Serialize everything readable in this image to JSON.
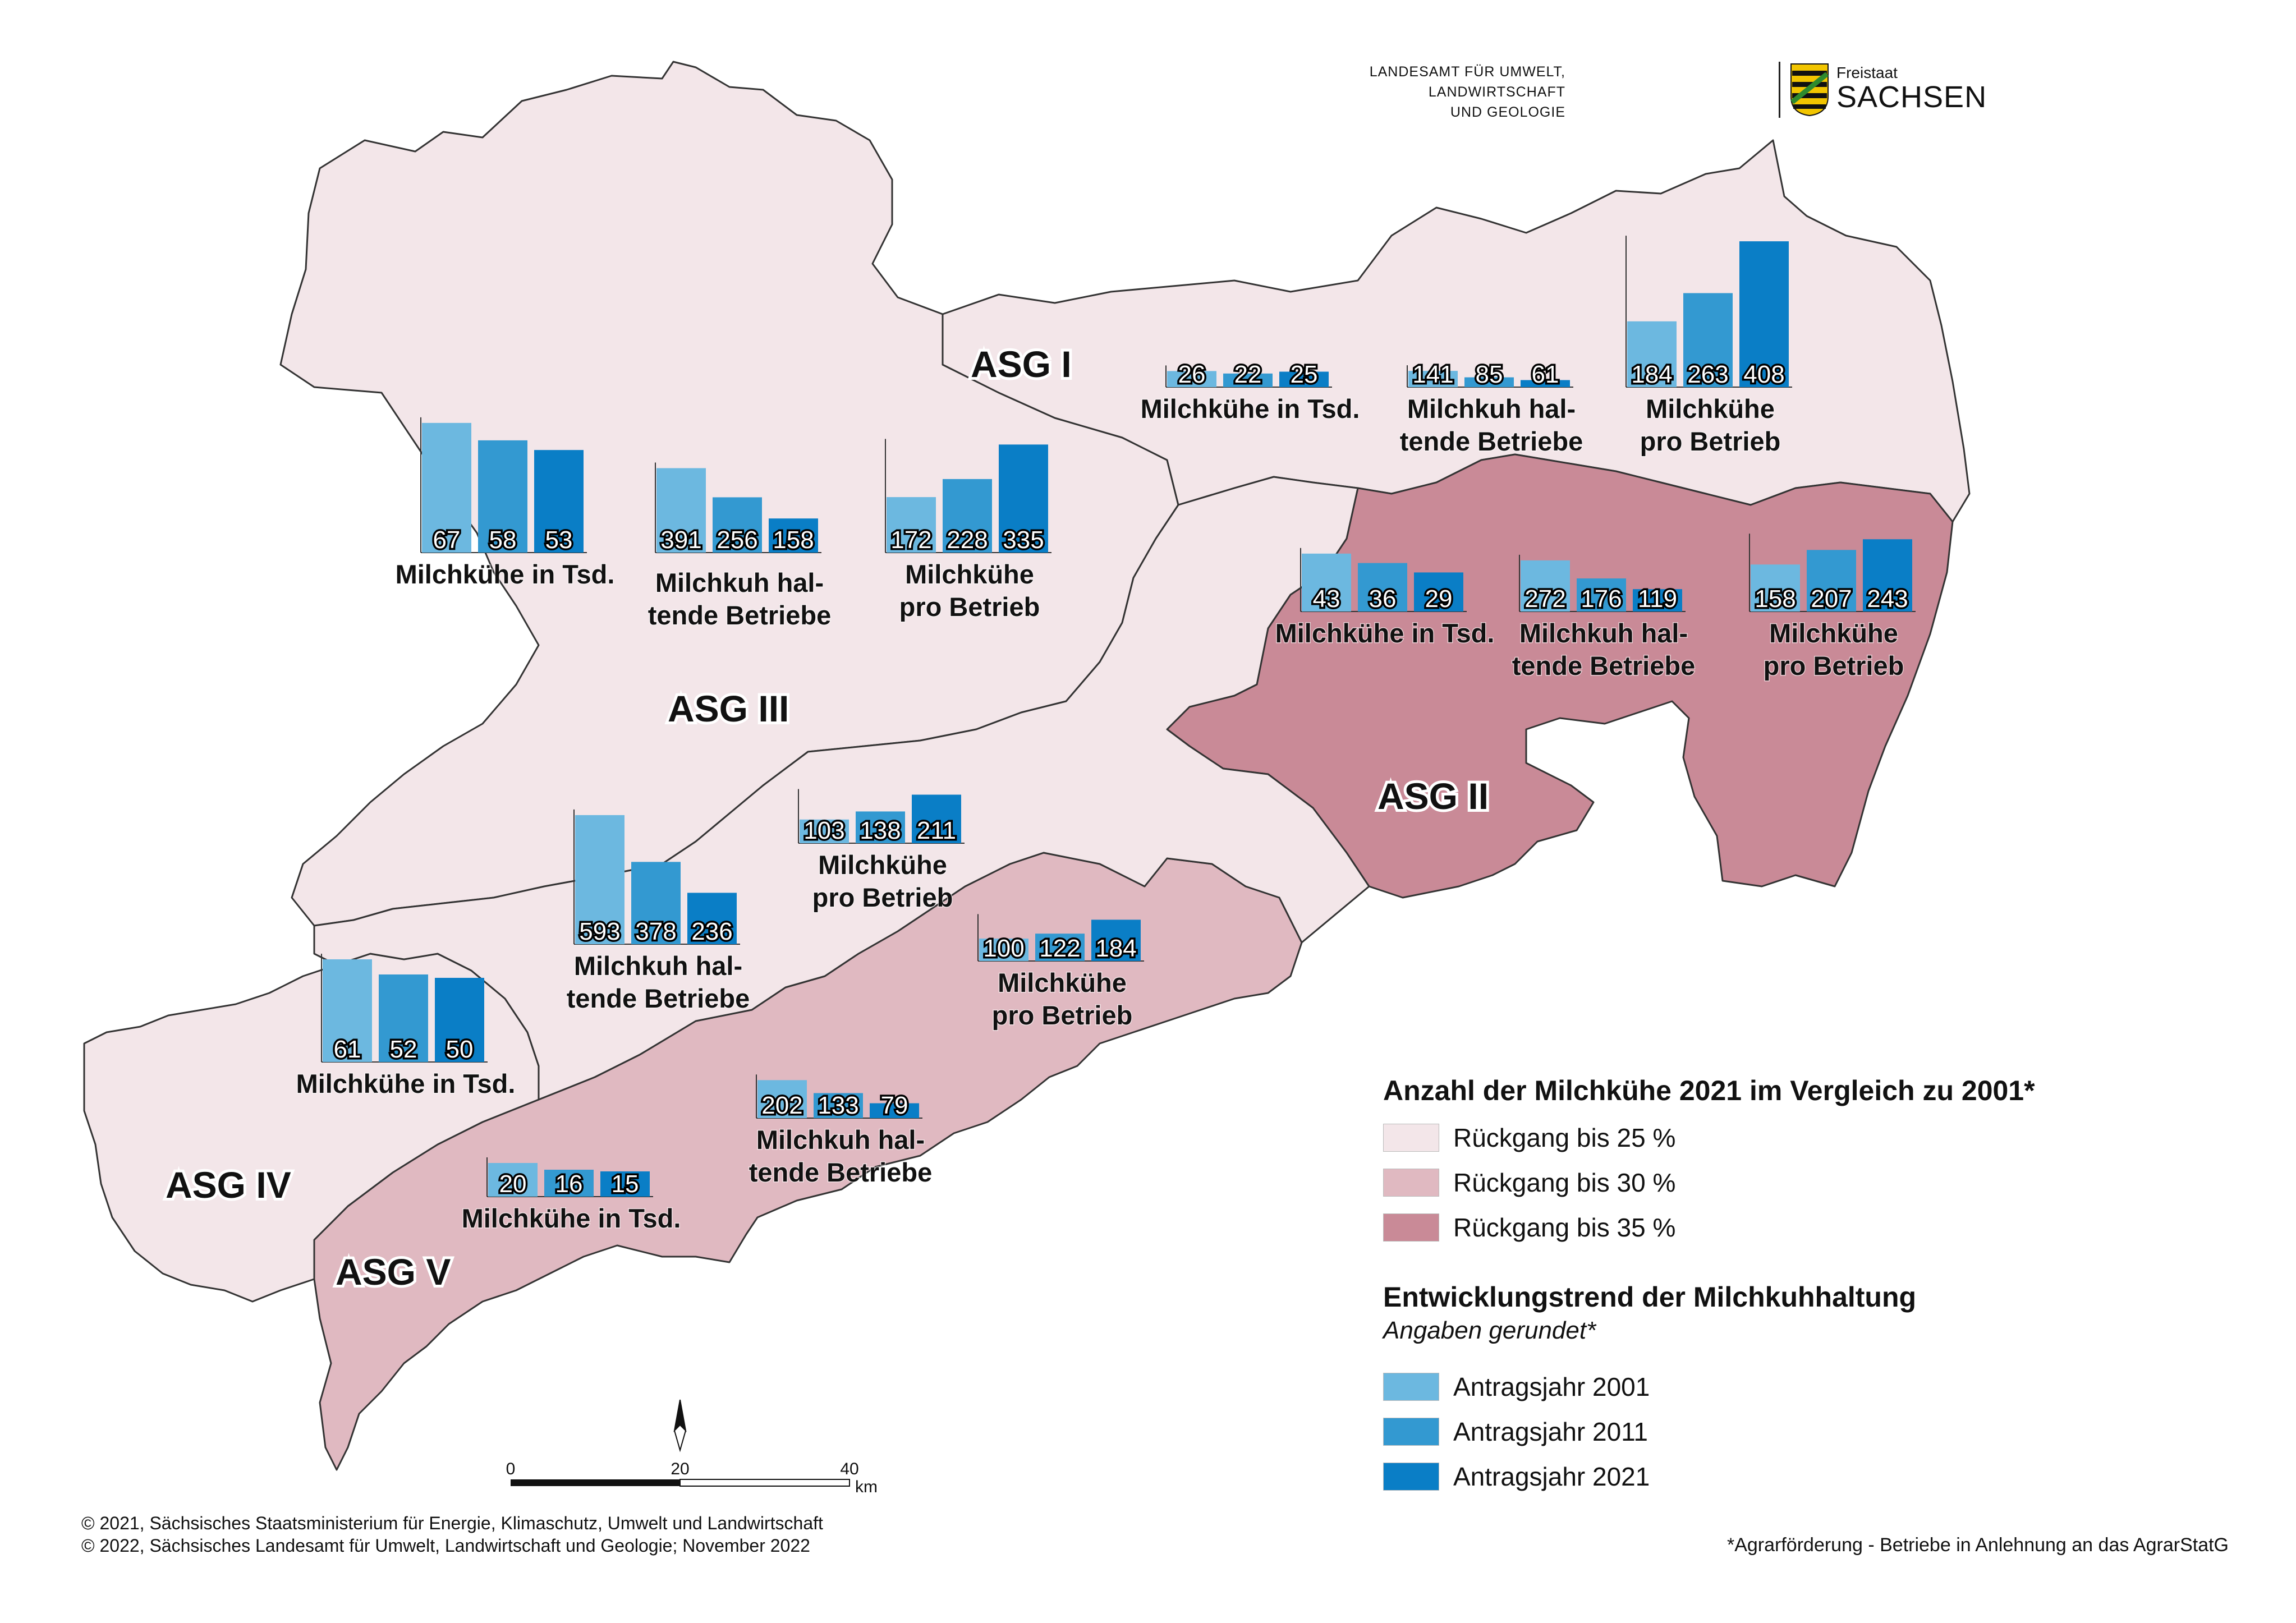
{
  "header": {
    "agency_lines": [
      "LANDESAMT FÜR UMWELT,",
      "LANDWIRTSCHAFT",
      "UND GEOLOGIE"
    ],
    "brand_small": "Freistaat",
    "brand_large": "SACHSEN"
  },
  "regions": [
    {
      "id": "ASG I",
      "label": "ASG I",
      "class": "Rückgang bis 25 %",
      "color": "#f3e6e9"
    },
    {
      "id": "ASG II",
      "label": "ASG II",
      "class": "Rückgang bis 35 %",
      "color": "#c98a97"
    },
    {
      "id": "ASG III",
      "label": "ASG III",
      "class": "Rückgang bis 25 %",
      "color": "#f3e6e9"
    },
    {
      "id": "ASG IV",
      "label": "ASG IV",
      "class": "Rückgang bis 25 %",
      "color": "#f3e6e9"
    },
    {
      "id": "ASG V",
      "label": "ASG V",
      "class": "Rückgang bis 30 %",
      "color": "#e0b9c1"
    }
  ],
  "chart_data": [
    {
      "type": "bar",
      "region": "ASG I",
      "title": "Milchkühe in Tsd.",
      "categories": [
        "Antragsjahr 2001",
        "Antragsjahr 2011",
        "Antragsjahr 2021"
      ],
      "values": [
        26,
        22,
        25
      ]
    },
    {
      "type": "bar",
      "region": "ASG I",
      "title": "Milchkuh hal- tende Betriebe",
      "categories": [
        "Antragsjahr 2001",
        "Antragsjahr 2011",
        "Antragsjahr 2021"
      ],
      "values": [
        141,
        85,
        61
      ]
    },
    {
      "type": "bar",
      "region": "ASG I",
      "title": "Milchkühe pro Betrieb",
      "categories": [
        "Antragsjahr 2001",
        "Antragsjahr 2011",
        "Antragsjahr 2021"
      ],
      "values": [
        184,
        263,
        408
      ]
    },
    {
      "type": "bar",
      "region": "ASG II",
      "title": "Milchkühe in Tsd.",
      "categories": [
        "Antragsjahr 2001",
        "Antragsjahr 2011",
        "Antragsjahr 2021"
      ],
      "values": [
        43,
        36,
        29
      ]
    },
    {
      "type": "bar",
      "region": "ASG II",
      "title": "Milchkuh hal- tende Betriebe",
      "categories": [
        "Antragsjahr 2001",
        "Antragsjahr 2011",
        "Antragsjahr 2021"
      ],
      "values": [
        272,
        176,
        119
      ]
    },
    {
      "type": "bar",
      "region": "ASG II",
      "title": "Milchkühe pro Betrieb",
      "categories": [
        "Antragsjahr 2001",
        "Antragsjahr 2011",
        "Antragsjahr 2021"
      ],
      "values": [
        158,
        207,
        243
      ]
    },
    {
      "type": "bar",
      "region": "ASG III",
      "title": "Milchkühe in Tsd.",
      "categories": [
        "Antragsjahr 2001",
        "Antragsjahr 2011",
        "Antragsjahr 2021"
      ],
      "values": [
        67,
        58,
        53
      ]
    },
    {
      "type": "bar",
      "region": "ASG III",
      "title": "Milchkuh hal- tende Betriebe",
      "categories": [
        "Antragsjahr 2001",
        "Antragsjahr 2011",
        "Antragsjahr 2021"
      ],
      "values": [
        391,
        256,
        158
      ]
    },
    {
      "type": "bar",
      "region": "ASG III",
      "title": "Milchkühe pro Betrieb",
      "categories": [
        "Antragsjahr 2001",
        "Antragsjahr 2011",
        "Antragsjahr 2021"
      ],
      "values": [
        172,
        228,
        335
      ]
    },
    {
      "type": "bar",
      "region": "ASG IV",
      "title": "Milchkühe in Tsd.",
      "categories": [
        "Antragsjahr 2001",
        "Antragsjahr 2011",
        "Antragsjahr 2021"
      ],
      "values": [
        61,
        52,
        50
      ]
    },
    {
      "type": "bar",
      "region": "ASG IV",
      "title": "Milchkuh hal- tende Betriebe",
      "categories": [
        "Antragsjahr 2001",
        "Antragsjahr 2011",
        "Antragsjahr 2021"
      ],
      "values": [
        593,
        378,
        236
      ]
    },
    {
      "type": "bar",
      "region": "ASG IV",
      "title": "Milchkühe pro Betrieb",
      "categories": [
        "Antragsjahr 2001",
        "Antragsjahr 2011",
        "Antragsjahr 2021"
      ],
      "values": [
        103,
        138,
        211
      ]
    },
    {
      "type": "bar",
      "region": "ASG V",
      "title": "Milchkühe in Tsd.",
      "categories": [
        "Antragsjahr 2001",
        "Antragsjahr 2011",
        "Antragsjahr 2021"
      ],
      "values": [
        20,
        16,
        15
      ]
    },
    {
      "type": "bar",
      "region": "ASG V",
      "title": "Milchkuh hal- tende Betriebe",
      "categories": [
        "Antragsjahr 2001",
        "Antragsjahr 2011",
        "Antragsjahr 2021"
      ],
      "values": [
        202,
        133,
        79
      ]
    },
    {
      "type": "bar",
      "region": "ASG V",
      "title": "Milchkühe pro Betrieb",
      "categories": [
        "Antragsjahr 2001",
        "Antragsjahr 2011",
        "Antragsjahr 2021"
      ],
      "values": [
        100,
        122,
        184
      ]
    }
  ],
  "legend": {
    "classes_title": "Anzahl der Milchkühe 2021 im Vergleich zu 2001*",
    "classes": [
      {
        "label": "Rückgang bis 25 %",
        "color": "#f3e6e9"
      },
      {
        "label": "Rückgang bis 30 %",
        "color": "#e0b9c1"
      },
      {
        "label": "Rückgang bis 35 %",
        "color": "#c98a97"
      }
    ],
    "trend_title": "Entwicklungstrend der Milchkuhhaltung",
    "trend_subtitle": "Angaben gerundet*",
    "years": [
      {
        "label": "Antragsjahr 2001",
        "color": "#6cb8e0"
      },
      {
        "label": "Antragsjahr 2011",
        "color": "#3399d1"
      },
      {
        "label": "Antragsjahr 2021",
        "color": "#0a7ec6"
      }
    ]
  },
  "scalebar": {
    "ticks": [
      "0",
      "20",
      "40"
    ],
    "unit": "km"
  },
  "copyright": [
    "© 2021, Sächsisches Staatsministerium für Energie, Klimaschutz, Umwelt und Landwirtschaft",
    "© 2022, Sächsisches Landesamt für Umwelt, Landwirtschaft und Geologie; November 2022"
  ],
  "footnote": "*Agrarförderung - Betriebe in Anlehnung an das AgrarStatG"
}
